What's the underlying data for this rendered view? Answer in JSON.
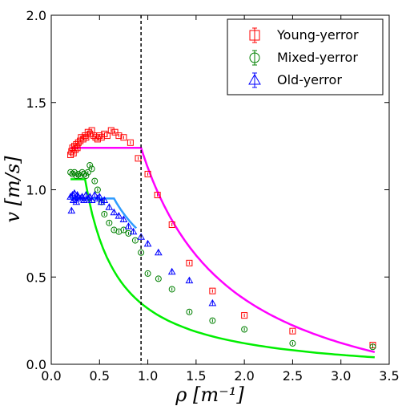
{
  "chart_data": {
    "type": "scatter",
    "title": "",
    "xlabel": "ρ [m⁻¹]",
    "ylabel": "v [m/s]",
    "xlim": [
      0.0,
      3.5
    ],
    "ylim": [
      0.0,
      2.0
    ],
    "x_ticks": [
      "0.0",
      "0.5",
      "1.0",
      "1.5",
      "2.0",
      "2.5",
      "3.0",
      "3.5"
    ],
    "y_ticks": [
      "0.0",
      "0.5",
      "1.0",
      "1.5",
      "2.0"
    ],
    "grid": false,
    "legend_position": "top-right",
    "vertical_line": {
      "x": 0.93,
      "style": "dashed",
      "color": "#000000"
    },
    "series": [
      {
        "name": "Young-yerror",
        "marker": "square",
        "color": "#ff0000",
        "points": [
          [
            0.2,
            1.2
          ],
          [
            0.21,
            1.22
          ],
          [
            0.22,
            1.24
          ],
          [
            0.23,
            1.21
          ],
          [
            0.24,
            1.25
          ],
          [
            0.25,
            1.23
          ],
          [
            0.26,
            1.26
          ],
          [
            0.27,
            1.24
          ],
          [
            0.28,
            1.27
          ],
          [
            0.3,
            1.28
          ],
          [
            0.31,
            1.3
          ],
          [
            0.33,
            1.29
          ],
          [
            0.35,
            1.31
          ],
          [
            0.36,
            1.3
          ],
          [
            0.38,
            1.33
          ],
          [
            0.4,
            1.32
          ],
          [
            0.42,
            1.34
          ],
          [
            0.44,
            1.31
          ],
          [
            0.46,
            1.3
          ],
          [
            0.48,
            1.29
          ],
          [
            0.5,
            1.31
          ],
          [
            0.52,
            1.3
          ],
          [
            0.55,
            1.32
          ],
          [
            0.58,
            1.31
          ],
          [
            0.62,
            1.34
          ],
          [
            0.66,
            1.33
          ],
          [
            0.7,
            1.31
          ],
          [
            0.75,
            1.3
          ],
          [
            0.82,
            1.27
          ],
          [
            0.9,
            1.18
          ],
          [
            1.0,
            1.09
          ],
          [
            1.1,
            0.97
          ],
          [
            1.25,
            0.8
          ],
          [
            1.43,
            0.58
          ],
          [
            1.67,
            0.42
          ],
          [
            2.0,
            0.28
          ],
          [
            2.5,
            0.19
          ],
          [
            3.33,
            0.11
          ]
        ],
        "fit": [
          [
            0.2,
            1.24
          ],
          [
            0.93,
            1.24
          ],
          [
            3.35,
            0.07
          ]
        ],
        "fit_color": "#ff00ff"
      },
      {
        "name": "Mixed-yerror",
        "marker": "circle",
        "color": "#008000",
        "points": [
          [
            0.2,
            1.1
          ],
          [
            0.22,
            1.09
          ],
          [
            0.24,
            1.1
          ],
          [
            0.26,
            1.08
          ],
          [
            0.28,
            1.09
          ],
          [
            0.3,
            1.08
          ],
          [
            0.32,
            1.1
          ],
          [
            0.34,
            1.09
          ],
          [
            0.36,
            1.08
          ],
          [
            0.38,
            1.1
          ],
          [
            0.4,
            1.14
          ],
          [
            0.42,
            1.12
          ],
          [
            0.45,
            1.05
          ],
          [
            0.48,
            1.0
          ],
          [
            0.52,
            0.93
          ],
          [
            0.55,
            0.86
          ],
          [
            0.6,
            0.81
          ],
          [
            0.65,
            0.77
          ],
          [
            0.7,
            0.76
          ],
          [
            0.75,
            0.77
          ],
          [
            0.8,
            0.75
          ],
          [
            0.87,
            0.71
          ],
          [
            0.93,
            0.64
          ],
          [
            1.0,
            0.52
          ],
          [
            1.11,
            0.49
          ],
          [
            1.25,
            0.43
          ],
          [
            1.43,
            0.3
          ],
          [
            1.67,
            0.25
          ],
          [
            2.0,
            0.2
          ],
          [
            2.5,
            0.12
          ],
          [
            3.33,
            0.1
          ]
        ],
        "fit": [
          [
            0.2,
            1.06
          ],
          [
            0.35,
            1.06
          ],
          [
            3.35,
            0.04
          ]
        ],
        "fit_color": "#00ee00"
      },
      {
        "name": "Old-yerror",
        "marker": "triangle",
        "color": "#0000ff",
        "points": [
          [
            0.2,
            0.96
          ],
          [
            0.21,
            0.88
          ],
          [
            0.22,
            0.97
          ],
          [
            0.23,
            0.94
          ],
          [
            0.24,
            0.98
          ],
          [
            0.25,
            0.95
          ],
          [
            0.26,
            0.93
          ],
          [
            0.27,
            0.97
          ],
          [
            0.28,
            0.96
          ],
          [
            0.3,
            0.95
          ],
          [
            0.32,
            0.96
          ],
          [
            0.34,
            0.94
          ],
          [
            0.36,
            0.97
          ],
          [
            0.38,
            0.95
          ],
          [
            0.4,
            0.96
          ],
          [
            0.42,
            0.94
          ],
          [
            0.45,
            0.97
          ],
          [
            0.48,
            0.95
          ],
          [
            0.5,
            0.96
          ],
          [
            0.52,
            0.93
          ],
          [
            0.55,
            0.94
          ],
          [
            0.6,
            0.9
          ],
          [
            0.65,
            0.87
          ],
          [
            0.7,
            0.85
          ],
          [
            0.75,
            0.83
          ],
          [
            0.8,
            0.79
          ],
          [
            0.85,
            0.76
          ],
          [
            0.93,
            0.73
          ],
          [
            1.0,
            0.69
          ],
          [
            1.11,
            0.64
          ],
          [
            1.25,
            0.53
          ],
          [
            1.43,
            0.48
          ],
          [
            1.67,
            0.35
          ]
        ],
        "fit": [
          [
            0.2,
            0.95
          ],
          [
            0.65,
            0.95
          ],
          [
            0.88,
            0.78
          ]
        ],
        "fit_color": "#2f9bff"
      }
    ]
  }
}
